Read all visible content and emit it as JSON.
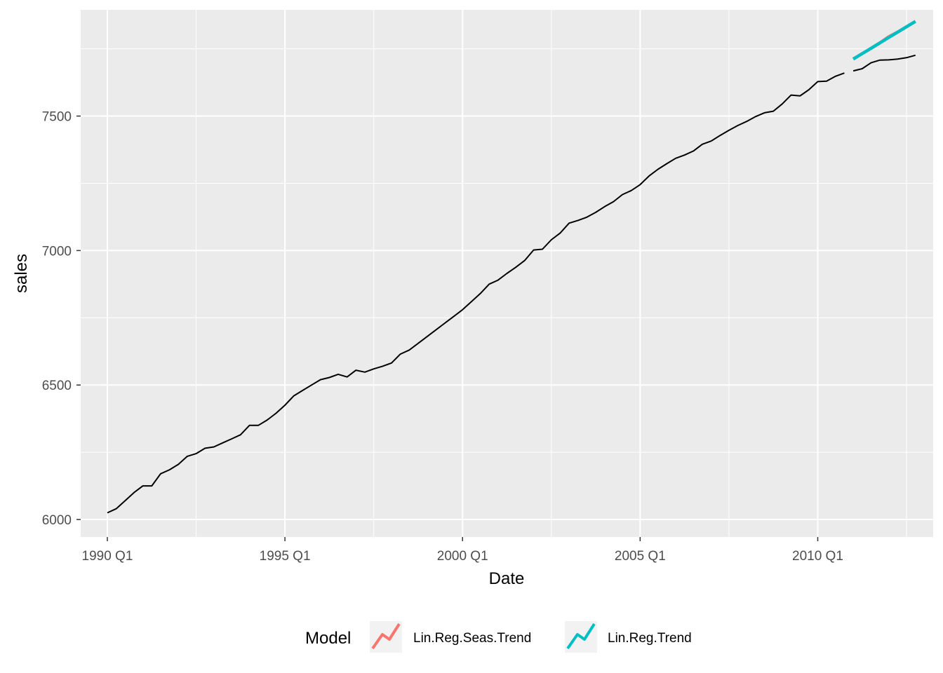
{
  "chart_data": {
    "type": "line",
    "title": "",
    "xlabel": "Date",
    "ylabel": "sales",
    "x_unit": "quarter",
    "xlim": [
      "1989 Q2",
      "2013 Q2"
    ],
    "ylim": [
      5935,
      7895
    ],
    "x_ticks": [
      "1990 Q1",
      "1995 Q1",
      "2000 Q1",
      "2005 Q1",
      "2010 Q1"
    ],
    "y_ticks": [
      6000,
      6500,
      7000,
      7500
    ],
    "grid": true,
    "panel_background": "#ebebeb",
    "grid_color": "#ffffff",
    "legend": {
      "title": "Model",
      "position": "bottom",
      "entries": [
        {
          "label": "Lin.Reg.Seas.Trend",
          "color": "#f8766d"
        },
        {
          "label": "Lin.Reg.Trend",
          "color": "#00bfc4"
        }
      ]
    },
    "series": [
      {
        "role": "observed",
        "color": "#000000",
        "x": [
          "1990 Q1",
          "1990 Q2",
          "1990 Q3",
          "1990 Q4",
          "1991 Q1",
          "1991 Q2",
          "1991 Q3",
          "1991 Q4",
          "1992 Q1",
          "1992 Q2",
          "1992 Q3",
          "1992 Q4",
          "1993 Q1",
          "1993 Q2",
          "1993 Q3",
          "1993 Q4",
          "1994 Q1",
          "1994 Q2",
          "1994 Q3",
          "1994 Q4",
          "1995 Q1",
          "1995 Q2",
          "1995 Q3",
          "1995 Q4",
          "1996 Q1",
          "1996 Q2",
          "1996 Q3",
          "1996 Q4",
          "1997 Q1",
          "1997 Q2",
          "1997 Q3",
          "1997 Q4",
          "1998 Q1",
          "1998 Q2",
          "1998 Q3",
          "1998 Q4",
          "1999 Q1",
          "1999 Q2",
          "1999 Q3",
          "1999 Q4",
          "2000 Q1",
          "2000 Q2",
          "2000 Q3",
          "2000 Q4",
          "2001 Q1",
          "2001 Q2",
          "2001 Q3",
          "2001 Q4",
          "2002 Q1",
          "2002 Q2",
          "2002 Q3",
          "2002 Q4",
          "2003 Q1",
          "2003 Q2",
          "2003 Q3",
          "2003 Q4",
          "2004 Q1",
          "2004 Q2",
          "2004 Q3",
          "2004 Q4",
          "2005 Q1",
          "2005 Q2",
          "2005 Q3",
          "2005 Q4",
          "2006 Q1",
          "2006 Q2",
          "2006 Q3",
          "2006 Q4",
          "2007 Q1",
          "2007 Q2",
          "2007 Q3",
          "2007 Q4",
          "2008 Q1",
          "2008 Q2",
          "2008 Q3",
          "2008 Q4",
          "2009 Q1",
          "2009 Q2",
          "2009 Q3",
          "2009 Q4",
          "2010 Q1",
          "2010 Q2",
          "2010 Q3",
          "2010 Q4"
        ],
        "values": [
          6025,
          6040,
          6070,
          6100,
          6125,
          6125,
          6170,
          6185,
          6205,
          6235,
          6245,
          6265,
          6270,
          6285,
          6300,
          6315,
          6350,
          6350,
          6370,
          6395,
          6425,
          6460,
          6480,
          6500,
          6520,
          6528,
          6540,
          6530,
          6555,
          6548,
          6560,
          6570,
          6582,
          6615,
          6630,
          6655,
          6680,
          6705,
          6730,
          6755,
          6780,
          6810,
          6840,
          6875,
          6890,
          6915,
          6938,
          6963,
          7002,
          7005,
          7040,
          7065,
          7102,
          7112,
          7124,
          7142,
          7163,
          7182,
          7208,
          7223,
          7245,
          7277,
          7302,
          7323,
          7343,
          7355,
          7370,
          7395,
          7407,
          7428,
          7447,
          7465,
          7480,
          7498,
          7512,
          7518,
          7545,
          7578,
          7575,
          7598,
          7628,
          7630,
          7648,
          7660
        ]
      },
      {
        "role": "observed",
        "color": "#000000",
        "x": [
          "2011 Q1",
          "2011 Q2",
          "2011 Q3",
          "2011 Q4",
          "2012 Q1",
          "2012 Q2",
          "2012 Q3",
          "2012 Q4"
        ],
        "values": [
          7668,
          7676,
          7698,
          7708,
          7709,
          7712,
          7717,
          7726
        ]
      },
      {
        "name": "Lin.Reg.Seas.Trend",
        "color": "#f8766d",
        "x": [
          "2011 Q1",
          "2011 Q2",
          "2011 Q3",
          "2011 Q4",
          "2012 Q1",
          "2012 Q2",
          "2012 Q3",
          "2012 Q4"
        ],
        "values": [
          7712,
          7732,
          7752,
          7772,
          7795,
          7812,
          7832,
          7852
        ]
      },
      {
        "name": "Lin.Reg.Trend",
        "color": "#00bfc4",
        "x": [
          "2011 Q1",
          "2011 Q2",
          "2011 Q3",
          "2011 Q4",
          "2012 Q1",
          "2012 Q2",
          "2012 Q3",
          "2012 Q4"
        ],
        "values": [
          7712,
          7732,
          7752,
          7772,
          7792,
          7812,
          7832,
          7852
        ]
      }
    ]
  }
}
